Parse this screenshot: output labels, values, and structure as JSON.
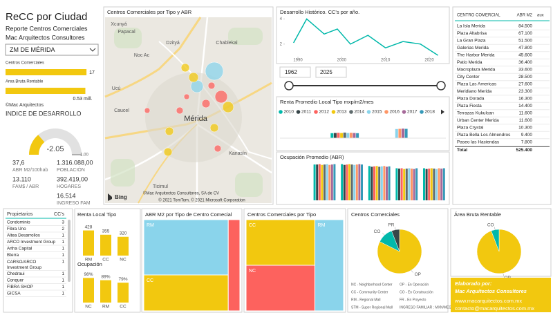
{
  "header": {
    "title": "ReCC por Ciudad",
    "subtitle": "Reporte Centros Comerciales",
    "company": "Mac Arquitectos Consultores"
  },
  "filter": "ZM DE MÉRIDA",
  "copyright": "©Mac Arquitectos",
  "index_title": "INDICE DE DESARROLLO",
  "kpis": [
    {
      "value": "37,6",
      "label": "ABR M2/100hab"
    },
    {
      "value": "1.316.088,00",
      "label": "POBLACIÓN"
    },
    {
      "value": "13.110",
      "label": "FAM$ / ABR"
    },
    {
      "value": "392.419,00",
      "label": "HOGARES"
    },
    {
      "value": "16.514",
      "label": "INGRESO FAM"
    }
  ],
  "map": {
    "title": "Centros Comerciales por Tipo y ABR",
    "places": [
      "Xcunyá",
      "Papacal",
      "Chablekal",
      "Noc Ac",
      "Dzityá",
      "Ucú",
      "Mérida",
      "Kanasín",
      "Ticimul",
      "Caucel"
    ],
    "credit": "© 2021 TomTom, © 2021 Microsoft Corporation",
    "owner": "©Mac Arquitectos Consultores, SA de CV",
    "brand": "Bing"
  },
  "slider": {
    "from": "1962",
    "to": "2025"
  },
  "ranking": {
    "columns": [
      "CENTRO COMERCIAL",
      "ABR M2",
      "aux"
    ],
    "rows": [
      [
        "La Isla Merida",
        "84.500"
      ],
      [
        "Plaza Altabrisa",
        "67.100"
      ],
      [
        "La Gran Plaza",
        "51.500"
      ],
      [
        "Galerias Merida",
        "47.800"
      ],
      [
        "The Harbor Merida",
        "45.600"
      ],
      [
        "Patio Merida",
        "36.400"
      ],
      [
        "Macroplaza Merida",
        "33.600"
      ],
      [
        "City Center",
        "28.500"
      ],
      [
        "Plaza Las Americas",
        "27.600"
      ],
      [
        "Meridiano Merida",
        "23.300"
      ],
      [
        "Plaza Dorada",
        "16.300"
      ],
      [
        "Plaza Fiesta",
        "14.400"
      ],
      [
        "Terrazas Kukulcan",
        "11.600"
      ],
      [
        "Urban Center Merida",
        "11.600"
      ],
      [
        "Plaza Crystal",
        "10.300"
      ],
      [
        "Plaza Bella Los Almendros",
        "9.400"
      ],
      [
        "Paseo las Haciendas",
        "7.800"
      ]
    ],
    "total": [
      "Total",
      "525.400"
    ]
  },
  "owners": {
    "columns": [
      "Propietarios",
      "CC's"
    ],
    "rows": [
      [
        "Condominio",
        3
      ],
      [
        "Fibra Uno",
        2
      ],
      [
        "Altea Desarrollos",
        1
      ],
      [
        "ARCO Investment Group",
        1
      ],
      [
        "Artha Capital",
        1
      ],
      [
        "Bterra",
        1
      ],
      [
        "CARSO/ARCO Investment Group",
        1
      ],
      [
        "Chedraui",
        1
      ],
      [
        "Conquer",
        1
      ],
      [
        "FIBRA SHOP",
        1
      ],
      [
        "GICSA",
        1
      ]
    ]
  },
  "notes": [
    "NC - Neighborhood Center",
    "CC - Community Center",
    "RM - Regional Mall",
    "STM - Super Regional Mall",
    "OP - En Operación",
    "CO - En Construcción",
    "FR - En Proyecto",
    "INGRESO FAMILIAR : MXN/MES"
  ],
  "footer": {
    "by": "Elaborado por:",
    "company": "Mac Arquitectos Consultores",
    "web": "www.macarquitectos.com.mx",
    "email": "contacto@macarquitectos.com.mx"
  },
  "chart_data": [
    {
      "type": "hbar",
      "title": "Centros Comerciales",
      "values": [
        17
      ],
      "xlim": [
        0,
        18
      ],
      "color": "#F2C80F"
    },
    {
      "type": "hbar",
      "title": "Area Bruta Rentable",
      "values": [
        0.53
      ],
      "value_labels": [
        "0.53 mill."
      ],
      "xlim": [
        0,
        0.56
      ],
      "color": "#F2C80F"
    },
    {
      "type": "gauge",
      "values": [
        -2.05
      ],
      "ylim": [
        -3.2,
        1
      ],
      "yticks": [
        {
          "value": 1,
          "label": "1.00"
        }
      ],
      "color": "#F2C80F"
    },
    {
      "type": "line",
      "title": "Desarrollo Histórico. CC's por año.",
      "x": [
        1989,
        1992,
        1996,
        1999,
        2002,
        2006,
        2010,
        2014,
        2018,
        2022
      ],
      "values": [
        2.1,
        4,
        2.8,
        3.2,
        2,
        2.7,
        1.7,
        2.2,
        2,
        1.1
      ],
      "xlim": [
        1987,
        2023
      ],
      "xticks": [
        1990,
        2000,
        2010,
        2020
      ],
      "ylim": [
        1,
        4.3
      ],
      "yticks": [
        2,
        4
      ],
      "color": "#01B8AA"
    },
    {
      "type": "bar",
      "title": "Renta Promedio Local Tipo mxp/m2/mes",
      "categories": [
        null,
        null
      ],
      "ylim": [
        0,
        100
      ],
      "series": [
        {
          "name": "2010",
          "color": "#01B8AA",
          "values": [
            24,
            null
          ]
        },
        {
          "name": "2011",
          "color": "#374649",
          "values": [
            25,
            null
          ]
        },
        {
          "name": "2012",
          "color": "#FD625E",
          "values": [
            26,
            null
          ]
        },
        {
          "name": "2013",
          "color": "#F2C80F",
          "values": [
            25,
            null
          ]
        },
        {
          "name": "2014",
          "color": "#5F6B6D",
          "values": [
            27,
            null
          ]
        },
        {
          "name": "2015",
          "color": "#8AD4EB",
          "values": [
            25,
            44
          ]
        },
        {
          "name": "2016",
          "color": "#FE9666",
          "values": [
            26,
            45
          ]
        },
        {
          "name": "2017",
          "color": "#A66999",
          "values": [
            25,
            46
          ]
        },
        {
          "name": "2018",
          "color": "#3599B8",
          "values": [
            24,
            45
          ]
        }
      ]
    },
    {
      "type": "bar",
      "title": "Ocupación Promedio (ABR)",
      "categories": [
        null,
        null,
        null,
        null,
        null
      ],
      "ylim": [
        0,
        100
      ],
      "series": [
        {
          "color": "#01B8AA",
          "values": [
            96,
            97,
            92,
            86,
            86
          ]
        },
        {
          "color": "#374649",
          "values": [
            96,
            95,
            90,
            85,
            84
          ]
        },
        {
          "color": "#FD625E",
          "values": [
            97,
            96,
            91,
            86,
            85
          ]
        },
        {
          "color": "#F2C80F",
          "values": [
            95,
            97,
            92,
            84,
            86
          ]
        },
        {
          "color": "#5F6B6D",
          "values": [
            96,
            96,
            90,
            85,
            85
          ]
        },
        {
          "color": "#8AD4EB",
          "values": [
            97,
            95,
            91,
            86,
            84
          ]
        },
        {
          "color": "#FE9666",
          "values": [
            95,
            96,
            92,
            85,
            86
          ]
        },
        {
          "color": "#A66999",
          "values": [
            96,
            97,
            90,
            84,
            85
          ]
        },
        {
          "color": "#3599B8",
          "values": [
            97,
            96,
            91,
            86,
            86
          ]
        }
      ]
    },
    {
      "type": "bar",
      "title": "Renta Local Tipo",
      "categories": [
        "RM",
        "CC",
        "NC"
      ],
      "values": [
        428,
        355,
        320
      ],
      "ylim": [
        0,
        470
      ],
      "color": "#F2C80F"
    },
    {
      "type": "bar",
      "title": "Ocupación",
      "categories": [
        "NC",
        "RM",
        "CC"
      ],
      "values": [
        98,
        89,
        79
      ],
      "value_labels": [
        "98%",
        "89%",
        "79%"
      ],
      "ylim": [
        0,
        110
      ],
      "color": "#F2C80F"
    },
    {
      "type": "treemap",
      "title": "ABR M2 por Tipo de Centro Comecial",
      "categories": [
        "RM",
        "CC",
        "NC"
      ],
      "values": [
        280000,
        182000,
        63400
      ],
      "colors": [
        "#8AD4EB",
        "#F2C80F",
        "#FD625E"
      ],
      "show_labels": [
        true,
        true,
        false
      ]
    },
    {
      "type": "treemap",
      "title": "Centros Comerciales por Tipo",
      "categories": [
        "CC",
        "NC",
        "RM"
      ],
      "values": [
        6,
        6,
        5
      ],
      "colors": [
        "#F2C80F",
        "#FD625E",
        "#8AD4EB"
      ],
      "show_labels": [
        true,
        true,
        true
      ]
    },
    {
      "type": "pie",
      "title": "Centros Comerciales",
      "categories": [
        "OP",
        "CO",
        "PR"
      ],
      "values": [
        14,
        2,
        1
      ],
      "colors": [
        "#F2C80F",
        "#01B8AA",
        "#374649"
      ]
    },
    {
      "type": "pie",
      "title": "Área Bruta Rentable",
      "categories": [
        "OP",
        "CO"
      ],
      "values": [
        495000,
        30400
      ],
      "colors": [
        "#F2C80F",
        "#01B8AA"
      ]
    }
  ]
}
